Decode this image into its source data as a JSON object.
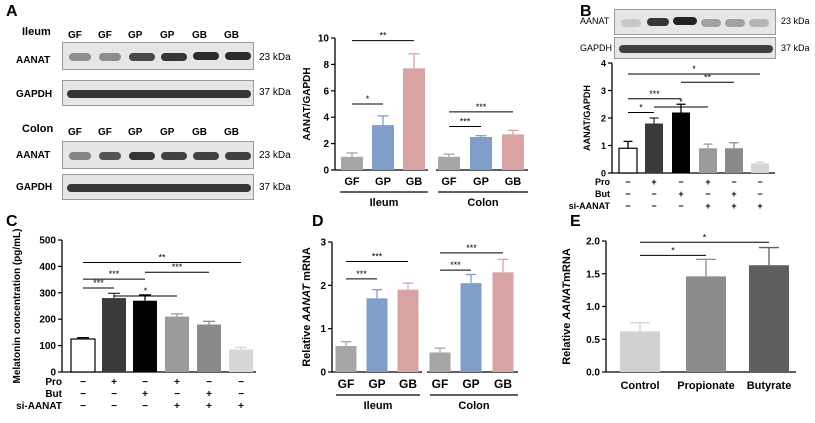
{
  "panels": {
    "A": {
      "letter": "A",
      "ileum_title": "Ileum",
      "colon_title": "Colon",
      "lanes": [
        "GF",
        "GF",
        "GP",
        "GP",
        "GB",
        "GB"
      ],
      "row_labels": {
        "aanat": "AANAT",
        "gapdh": "GAPDH"
      },
      "kda": {
        "aanat": "23 kDa",
        "gapdh": "37 kDa"
      }
    },
    "B": {
      "letter": "B",
      "row_labels": {
        "aanat": "AANAT",
        "gapdh": "GAPDH"
      },
      "kda": {
        "aanat": "23 kDa",
        "gapdh": "37 kDa"
      },
      "treat_labels": [
        "Pro",
        "But",
        "si-AANAT"
      ],
      "treat_matrix": [
        [
          "−",
          "+",
          "−",
          "+",
          "−",
          "−"
        ],
        [
          "−",
          "−",
          "+",
          "−",
          "+",
          "−"
        ],
        [
          "−",
          "−",
          "−",
          "+",
          "+",
          "+"
        ]
      ]
    },
    "C": {
      "letter": "C",
      "treat_labels": [
        "Pro",
        "But",
        "si-AANAT"
      ],
      "treat_matrix": [
        [
          "−",
          "+",
          "−",
          "+",
          "−",
          "−"
        ],
        [
          "−",
          "−",
          "+",
          "−",
          "+",
          "−"
        ],
        [
          "−",
          "−",
          "−",
          "+",
          "+",
          "+"
        ]
      ]
    },
    "D": {
      "letter": "D"
    },
    "E": {
      "letter": "E"
    }
  },
  "chart_data": [
    {
      "id": "A",
      "type": "bar",
      "ylabel": "AANAT/GAPDH",
      "ylim": [
        0,
        10
      ],
      "yticks": [
        "0",
        "2",
        "4",
        "6",
        "8",
        "10"
      ],
      "categories": [
        "GF",
        "GP",
        "GB",
        "GF",
        "GP",
        "GB"
      ],
      "groups": [
        "Ileum",
        "Colon"
      ],
      "values": [
        1.0,
        3.4,
        7.7,
        1.0,
        2.5,
        2.7
      ],
      "errors": [
        0.3,
        0.7,
        1.1,
        0.2,
        0.1,
        0.3
      ],
      "colors": [
        "#a6a6a6",
        "#7f9fca",
        "#d9a3a3",
        "#a6a6a6",
        "#7f9fca",
        "#d9a3a3"
      ],
      "significance": [
        {
          "text": "*",
          "from": 0,
          "to": 1,
          "y": 5.0
        },
        {
          "text": "**",
          "from": 0,
          "to": 2,
          "y": 9.8
        },
        {
          "text": "***",
          "from": 3,
          "to": 4,
          "y": 3.3
        },
        {
          "text": "***",
          "from": 3,
          "to": 5,
          "y": 4.4
        }
      ]
    },
    {
      "id": "B",
      "type": "bar",
      "ylabel": "AANAT/GAPDH",
      "ylim": [
        0,
        4
      ],
      "yticks": [
        "0",
        "1",
        "2",
        "3",
        "4"
      ],
      "values": [
        0.9,
        1.8,
        2.2,
        0.9,
        0.9,
        0.35
      ],
      "errors": [
        0.25,
        0.2,
        0.3,
        0.15,
        0.2,
        0.05
      ],
      "colors": [
        "#ffffff",
        "#3a3a3a",
        "#000000",
        "#9b9b9b",
        "#8a8a8a",
        "#d6d6d6"
      ],
      "significance": [
        {
          "text": "*",
          "from": 0,
          "to": 1,
          "y": 2.2
        },
        {
          "text": "***",
          "from": 0,
          "to": 2,
          "y": 2.7
        },
        {
          "text": "*",
          "from": 1,
          "to": 3,
          "y": 2.4
        },
        {
          "text": "**",
          "from": 2,
          "to": 4,
          "y": 3.3
        },
        {
          "text": "*",
          "from": 0,
          "to": 5,
          "y": 3.6
        }
      ]
    },
    {
      "id": "C",
      "type": "bar",
      "ylabel": "Melatonin concentration (pg/mL)",
      "ylim": [
        0,
        500
      ],
      "yticks": [
        "0",
        "100",
        "200",
        "300",
        "400",
        "500"
      ],
      "values": [
        125,
        280,
        270,
        210,
        180,
        85
      ],
      "errors": [
        5,
        18,
        22,
        10,
        12,
        8
      ],
      "colors": [
        "#ffffff",
        "#3a3a3a",
        "#000000",
        "#9b9b9b",
        "#8a8a8a",
        "#d6d6d6"
      ],
      "significance": [
        {
          "text": "***",
          "from": 0,
          "to": 1,
          "y": 318
        },
        {
          "text": "***",
          "from": 0,
          "to": 2,
          "y": 352
        },
        {
          "text": "*",
          "from": 1,
          "to": 3,
          "y": 288
        },
        {
          "text": "***",
          "from": 2,
          "to": 4,
          "y": 378
        },
        {
          "text": "**",
          "from": 0,
          "to": 5,
          "y": 415
        }
      ]
    },
    {
      "id": "D",
      "type": "bar",
      "ylabel_pre": "Relative ",
      "ylabel_italic": "AANAT",
      "ylabel_post": " mRNA",
      "ylim": [
        0,
        3
      ],
      "yticks": [
        "0",
        "1",
        "2",
        "3"
      ],
      "categories": [
        "GF",
        "GP",
        "GB",
        "GF",
        "GP",
        "GB"
      ],
      "groups": [
        "Ileum",
        "Colon"
      ],
      "values": [
        0.6,
        1.7,
        1.9,
        0.45,
        2.05,
        2.3
      ],
      "errors": [
        0.1,
        0.2,
        0.15,
        0.1,
        0.2,
        0.3
      ],
      "colors": [
        "#a6a6a6",
        "#7f9fca",
        "#d9a3a3",
        "#a6a6a6",
        "#7f9fca",
        "#d9a3a3"
      ],
      "significance": [
        {
          "text": "***",
          "from": 0,
          "to": 1,
          "y": 2.15
        },
        {
          "text": "***",
          "from": 0,
          "to": 2,
          "y": 2.55
        },
        {
          "text": "***",
          "from": 3,
          "to": 4,
          "y": 2.35
        },
        {
          "text": "***",
          "from": 3,
          "to": 5,
          "y": 2.75
        }
      ]
    },
    {
      "id": "E",
      "type": "bar",
      "ylabel_pre": "Relative ",
      "ylabel_italic": "AANAT",
      "ylabel_post": "mRNA",
      "ylim": [
        0,
        2.0
      ],
      "yticks": [
        "0.0",
        "0.5",
        "1.0",
        "1.5",
        "2.0"
      ],
      "categories": [
        "Control",
        "Propionate",
        "Butyrate"
      ],
      "values": [
        0.62,
        1.46,
        1.63
      ],
      "errors": [
        0.13,
        0.26,
        0.27
      ],
      "colors": [
        "#d0d0d0",
        "#8c8c8c",
        "#5f5f5f"
      ],
      "significance": [
        {
          "text": "*",
          "from": 0,
          "to": 1,
          "y": 1.78
        },
        {
          "text": "*",
          "from": 0,
          "to": 2,
          "y": 1.98
        }
      ]
    }
  ]
}
